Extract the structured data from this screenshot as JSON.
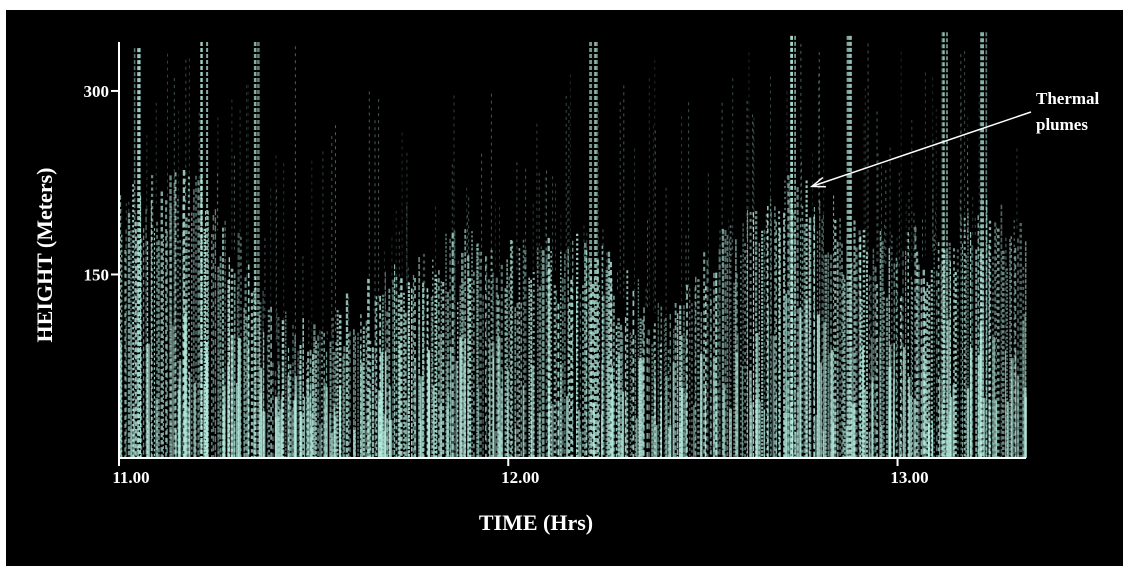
{
  "chart_data": {
    "type": "heatmap",
    "title": "",
    "xlabel": "TIME (Hrs)",
    "ylabel": "HEIGHT (Meters)",
    "x_ticks": [
      "11.00",
      "12.00",
      "13.00"
    ],
    "y_ticks": [
      "150",
      "300"
    ],
    "xlim": [
      11.0,
      13.33
    ],
    "ylim": [
      0,
      340
    ],
    "grid": false,
    "colors": {
      "background": "#000000",
      "echo": "#b9f2e4",
      "axis": "#ffffff"
    },
    "annotation": {
      "text_line1": "Thermal",
      "text_line2": "plumes",
      "points_to": {
        "time": 12.78,
        "height": 222
      }
    },
    "echo_top_height_series": {
      "time": [
        11.0,
        11.1,
        11.2,
        11.3,
        11.4,
        11.5,
        11.6,
        11.7,
        11.8,
        11.9,
        12.0,
        12.1,
        12.2,
        12.3,
        12.4,
        12.5,
        12.6,
        12.7,
        12.8,
        12.9,
        13.0,
        13.1,
        13.2,
        13.33
      ],
      "height": [
        190,
        205,
        210,
        165,
        95,
        90,
        110,
        130,
        150,
        160,
        150,
        150,
        160,
        130,
        115,
        140,
        175,
        210,
        200,
        160,
        155,
        170,
        180,
        185
      ]
    },
    "plume_tops": [
      {
        "time": 11.05,
        "height": 335
      },
      {
        "time": 11.22,
        "height": 340
      },
      {
        "time": 11.35,
        "height": 340
      },
      {
        "time": 12.22,
        "height": 340
      },
      {
        "time": 12.73,
        "height": 345
      },
      {
        "time": 12.88,
        "height": 345
      },
      {
        "time": 13.12,
        "height": 350
      },
      {
        "time": 13.22,
        "height": 350
      }
    ]
  }
}
